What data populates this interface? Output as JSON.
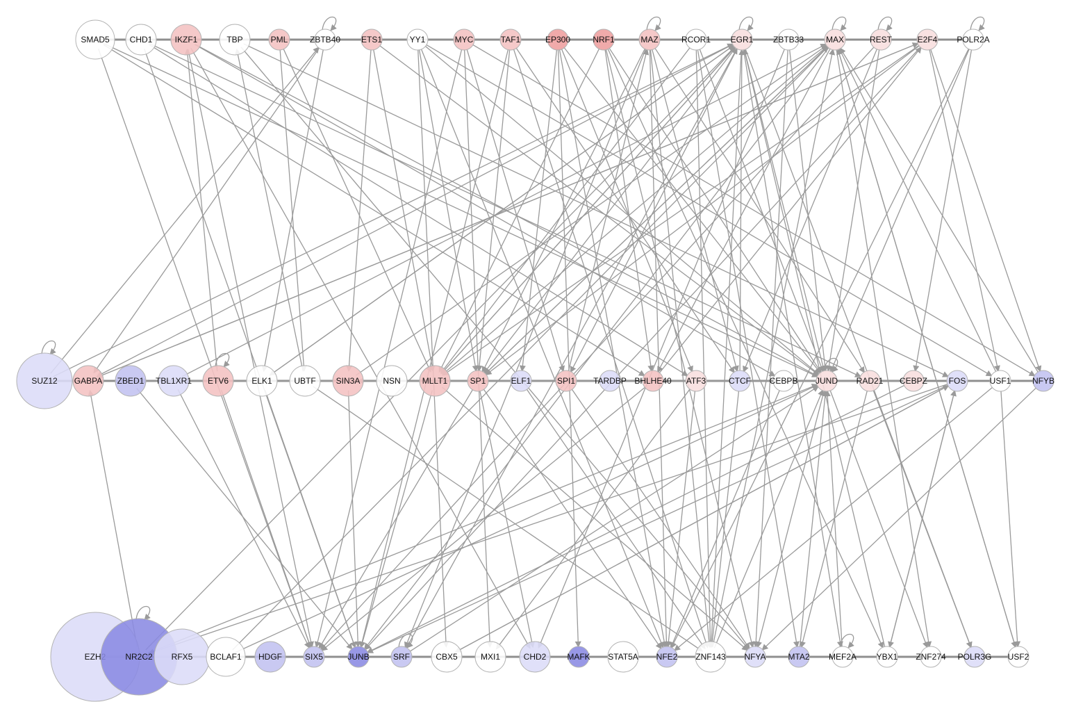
{
  "colors": {
    "edge": "#9a9a9a",
    "node_stroke": "#b3b3b3",
    "neutral": "#ffffff",
    "up_light": "#f8dede",
    "up_mid": "#f4c2c2",
    "up_strong": "#ee9e9e",
    "down_light": "#dcdcf8",
    "down_mid": "#c2c2f0",
    "down_strong": "#8a8ae3"
  },
  "rows": [
    {
      "name": "top",
      "nodes": [
        {
          "id": "SMAD5",
          "label": "SMAD5",
          "size": 3,
          "tone": "neutral",
          "self_loop": false
        },
        {
          "id": "CHD1",
          "label": "CHD1",
          "size": 2,
          "tone": "neutral",
          "self_loop": false
        },
        {
          "id": "IKZF1",
          "label": "IKZF1",
          "size": 2,
          "tone": "up_mid",
          "self_loop": false
        },
        {
          "id": "TBP",
          "label": "TBP",
          "size": 2,
          "tone": "neutral",
          "self_loop": false
        },
        {
          "id": "PML",
          "label": "PML",
          "size": 1,
          "tone": "up_mid",
          "self_loop": false
        },
        {
          "id": "ZBTB40",
          "label": "ZBTB40",
          "size": 1,
          "tone": "neutral",
          "self_loop": true
        },
        {
          "id": "ETS1",
          "label": "ETS1",
          "size": 1,
          "tone": "up_mid",
          "self_loop": false
        },
        {
          "id": "YY1",
          "label": "YY1",
          "size": 1,
          "tone": "neutral",
          "self_loop": false
        },
        {
          "id": "MYC",
          "label": "MYC",
          "size": 1,
          "tone": "up_mid",
          "self_loop": false
        },
        {
          "id": "TAF1",
          "label": "TAF1",
          "size": 1,
          "tone": "up_mid",
          "self_loop": false
        },
        {
          "id": "EP300",
          "label": "EP300",
          "size": 1,
          "tone": "up_strong",
          "self_loop": false
        },
        {
          "id": "NRF1",
          "label": "NRF1",
          "size": 1,
          "tone": "up_strong",
          "self_loop": false
        },
        {
          "id": "MAZ",
          "label": "MAZ",
          "size": 1,
          "tone": "up_mid",
          "self_loop": true
        },
        {
          "id": "RCOR1",
          "label": "RCOR1",
          "size": 1,
          "tone": "neutral",
          "self_loop": false
        },
        {
          "id": "EGR1",
          "label": "EGR1",
          "size": 1,
          "tone": "up_light",
          "self_loop": true
        },
        {
          "id": "ZBTB33",
          "label": "ZBTB33",
          "size": 1,
          "tone": "neutral",
          "self_loop": false
        },
        {
          "id": "MAX",
          "label": "MAX",
          "size": 1,
          "tone": "up_light",
          "self_loop": true
        },
        {
          "id": "REST",
          "label": "REST",
          "size": 1,
          "tone": "up_light",
          "self_loop": true
        },
        {
          "id": "E2F4",
          "label": "E2F4",
          "size": 1,
          "tone": "up_light",
          "self_loop": false
        },
        {
          "id": "POLR2A",
          "label": "POLR2A",
          "size": 1,
          "tone": "neutral",
          "self_loop": true
        }
      ]
    },
    {
      "name": "middle",
      "nodes": [
        {
          "id": "SUZ12",
          "label": "SUZ12",
          "size": 4,
          "tone": "down_light",
          "self_loop": true
        },
        {
          "id": "GABPA",
          "label": "GABPA",
          "size": 2,
          "tone": "up_mid",
          "self_loop": false
        },
        {
          "id": "ZBED1",
          "label": "ZBED1",
          "size": 2,
          "tone": "down_mid",
          "self_loop": false
        },
        {
          "id": "TBL1XR1",
          "label": "TBL1XR1",
          "size": 2,
          "tone": "down_light",
          "self_loop": false
        },
        {
          "id": "ETV6",
          "label": "ETV6",
          "size": 2,
          "tone": "up_mid",
          "self_loop": true
        },
        {
          "id": "ELK1",
          "label": "ELK1",
          "size": 2,
          "tone": "neutral",
          "self_loop": false
        },
        {
          "id": "UBTF",
          "label": "UBTF",
          "size": 2,
          "tone": "neutral",
          "self_loop": false
        },
        {
          "id": "SIN3A",
          "label": "SIN3A",
          "size": 2,
          "tone": "up_mid",
          "self_loop": false
        },
        {
          "id": "NSN",
          "label": "NSN",
          "size": 2,
          "tone": "neutral",
          "self_loop": false
        },
        {
          "id": "MLLT1",
          "label": "MLLT1",
          "size": 2,
          "tone": "up_mid",
          "self_loop": false
        },
        {
          "id": "SP1",
          "label": "SP1",
          "size": 1,
          "tone": "up_mid",
          "self_loop": false
        },
        {
          "id": "ELF1",
          "label": "ELF1",
          "size": 1,
          "tone": "down_light",
          "self_loop": false
        },
        {
          "id": "SPI1",
          "label": "SPI1",
          "size": 1,
          "tone": "up_mid",
          "self_loop": false
        },
        {
          "id": "TARDBP",
          "label": "TARDBP",
          "size": 1,
          "tone": "down_light",
          "self_loop": false
        },
        {
          "id": "BHLHE40",
          "label": "BHLHE40",
          "size": 1,
          "tone": "up_mid",
          "self_loop": false
        },
        {
          "id": "ATF3",
          "label": "ATF3",
          "size": 1,
          "tone": "up_light",
          "self_loop": false
        },
        {
          "id": "CTCF",
          "label": "CTCF",
          "size": 1,
          "tone": "down_light",
          "self_loop": false
        },
        {
          "id": "CEBPB",
          "label": "CEBPB",
          "size": 1,
          "tone": "neutral",
          "self_loop": false
        },
        {
          "id": "JUND",
          "label": "JUND",
          "size": 1,
          "tone": "up_light",
          "self_loop": true
        },
        {
          "id": "RAD21",
          "label": "RAD21",
          "size": 1,
          "tone": "up_light",
          "self_loop": false
        },
        {
          "id": "CEBPZ",
          "label": "CEBPZ",
          "size": 1,
          "tone": "up_light",
          "self_loop": false
        },
        {
          "id": "FOS",
          "label": "FOS",
          "size": 1,
          "tone": "down_light",
          "self_loop": false
        },
        {
          "id": "USF1",
          "label": "USF1",
          "size": 1,
          "tone": "neutral",
          "self_loop": false
        },
        {
          "id": "NFYB",
          "label": "NFYB",
          "size": 1,
          "tone": "down_mid",
          "self_loop": false
        }
      ]
    },
    {
      "name": "bottom",
      "nodes": [
        {
          "id": "EZH2",
          "label": "EZH2",
          "size": 8,
          "tone": "down_light",
          "self_loop": false
        },
        {
          "id": "NR2C2",
          "label": "NR2C2",
          "size": 6,
          "tone": "down_strong",
          "self_loop": true
        },
        {
          "id": "RFX5",
          "label": "RFX5",
          "size": 4,
          "tone": "down_light",
          "self_loop": false
        },
        {
          "id": "BCLAF1",
          "label": "BCLAF1",
          "size": 3,
          "tone": "neutral",
          "self_loop": false
        },
        {
          "id": "HDGF",
          "label": "HDGF",
          "size": 2,
          "tone": "down_mid",
          "self_loop": false
        },
        {
          "id": "SIX5",
          "label": "SIX5",
          "size": 1,
          "tone": "down_mid",
          "self_loop": false
        },
        {
          "id": "JUNB",
          "label": "JUNB",
          "size": 1,
          "tone": "down_strong",
          "self_loop": false
        },
        {
          "id": "SRF",
          "label": "SRF",
          "size": 1,
          "tone": "down_mid",
          "self_loop": true
        },
        {
          "id": "CBX5",
          "label": "CBX5",
          "size": 2,
          "tone": "neutral",
          "self_loop": false
        },
        {
          "id": "MXI1",
          "label": "MXI1",
          "size": 2,
          "tone": "neutral",
          "self_loop": false
        },
        {
          "id": "CHD2",
          "label": "CHD2",
          "size": 2,
          "tone": "down_light",
          "self_loop": false
        },
        {
          "id": "MAFK",
          "label": "MAFK",
          "size": 1,
          "tone": "down_strong",
          "self_loop": false
        },
        {
          "id": "STAT5A",
          "label": "STAT5A",
          "size": 2,
          "tone": "neutral",
          "self_loop": false
        },
        {
          "id": "NFE2",
          "label": "NFE2",
          "size": 1,
          "tone": "down_mid",
          "self_loop": false
        },
        {
          "id": "ZNF143",
          "label": "ZNF143",
          "size": 2,
          "tone": "neutral",
          "self_loop": false
        },
        {
          "id": "NFYA",
          "label": "NFYA",
          "size": 1,
          "tone": "down_light",
          "self_loop": false
        },
        {
          "id": "MTA2",
          "label": "MTA2",
          "size": 1,
          "tone": "down_mid",
          "self_loop": false
        },
        {
          "id": "MEF2A",
          "label": "MEF2A",
          "size": 1,
          "tone": "neutral",
          "self_loop": true
        },
        {
          "id": "YBX1",
          "label": "YBX1",
          "size": 1,
          "tone": "neutral",
          "self_loop": false
        },
        {
          "id": "ZNF274",
          "label": "ZNF274",
          "size": 1,
          "tone": "neutral",
          "self_loop": false
        },
        {
          "id": "POLR3G",
          "label": "POLR3G",
          "size": 1,
          "tone": "down_light",
          "self_loop": false
        },
        {
          "id": "USF2",
          "label": "USF2",
          "size": 1,
          "tone": "neutral",
          "self_loop": false
        }
      ]
    }
  ],
  "edges": [
    [
      "SMAD5",
      "SIX5"
    ],
    [
      "SMAD5",
      "BHLHE40"
    ],
    [
      "SMAD5",
      "JUND"
    ],
    [
      "CHD1",
      "JUNB"
    ],
    [
      "CHD1",
      "ATF3"
    ],
    [
      "CHD1",
      "RAD21"
    ],
    [
      "IKZF1",
      "SIX5"
    ],
    [
      "IKZF1",
      "CEBPB"
    ],
    [
      "IKZF1",
      "JUND"
    ],
    [
      "IKZF1",
      "CHD2"
    ],
    [
      "TBP",
      "NFYA"
    ],
    [
      "TBP",
      "FOS"
    ],
    [
      "PML",
      "MLLT1"
    ],
    [
      "PML",
      "UBTF"
    ],
    [
      "ZBTB40",
      "ELK1"
    ],
    [
      "ZBTB40",
      "GABPA"
    ],
    [
      "ETS1",
      "SIN3A"
    ],
    [
      "ETS1",
      "MLLT1"
    ],
    [
      "ETS1",
      "JUND"
    ],
    [
      "YY1",
      "SP1"
    ],
    [
      "YY1",
      "JUND"
    ],
    [
      "YY1",
      "NFE2"
    ],
    [
      "YY1",
      "CBX5"
    ],
    [
      "YY1",
      "USF1"
    ],
    [
      "MYC",
      "SPI1"
    ],
    [
      "MYC",
      "MXI1"
    ],
    [
      "MYC",
      "NFYB"
    ],
    [
      "MYC",
      "SIX5"
    ],
    [
      "TAF1",
      "JUNB"
    ],
    [
      "TAF1",
      "SP1"
    ],
    [
      "TAF1",
      "CTCF"
    ],
    [
      "TAF1",
      "ZNF143"
    ],
    [
      "EP300",
      "ELF1"
    ],
    [
      "EP300",
      "ATF3"
    ],
    [
      "EP300",
      "JUND"
    ],
    [
      "EP300",
      "MAFK"
    ],
    [
      "EP300",
      "NFE2"
    ],
    [
      "NRF1",
      "BHLHE40"
    ],
    [
      "NRF1",
      "JUND"
    ],
    [
      "NRF1",
      "MLLT1"
    ],
    [
      "NRF1",
      "NFYA"
    ],
    [
      "NRF1",
      "YBX1"
    ],
    [
      "MAZ",
      "SP1"
    ],
    [
      "MAZ",
      "ZNF143"
    ],
    [
      "MAZ",
      "SRF"
    ],
    [
      "MAZ",
      "CTCF"
    ],
    [
      "MAZ",
      "NFE2"
    ],
    [
      "MAZ",
      "RAD21"
    ],
    [
      "RCOR1",
      "MLLT1"
    ],
    [
      "RCOR1",
      "JUND"
    ],
    [
      "RCOR1",
      "ZNF143"
    ],
    [
      "RCOR1",
      "MTA2"
    ],
    [
      "EGR1",
      "GABPA"
    ],
    [
      "EGR1",
      "ELK1"
    ],
    [
      "EGR1",
      "SP1"
    ],
    [
      "EGR1",
      "MLLT1"
    ],
    [
      "EGR1",
      "SPI1"
    ],
    [
      "EGR1",
      "JUND"
    ],
    [
      "EGR1",
      "ZNF143"
    ],
    [
      "EGR1",
      "POLR3G"
    ],
    [
      "EGR1",
      "MEF2A"
    ],
    [
      "ZBTB33",
      "JUND"
    ],
    [
      "ZBTB33",
      "NFYA"
    ],
    [
      "ZBTB33",
      "CHD2"
    ],
    [
      "MAX",
      "MLLT1"
    ],
    [
      "MAX",
      "JUNB"
    ],
    [
      "MAX",
      "SP1"
    ],
    [
      "MAX",
      "ZNF274"
    ],
    [
      "MAX",
      "BHLHE40"
    ],
    [
      "MAX",
      "USF2"
    ],
    [
      "REST",
      "JUND"
    ],
    [
      "REST",
      "CTCF"
    ],
    [
      "REST",
      "SIX5"
    ],
    [
      "E2F4",
      "GABPA"
    ],
    [
      "E2F4",
      "MLLT1"
    ],
    [
      "E2F4",
      "SP1"
    ],
    [
      "E2F4",
      "NFYB"
    ],
    [
      "E2F4",
      "JUNB"
    ],
    [
      "E2F4",
      "USF1"
    ],
    [
      "POLR2A",
      "JUND"
    ],
    [
      "POLR2A",
      "CEBPZ"
    ],
    [
      "POLR2A",
      "NFE2"
    ],
    [
      "SUZ12",
      "EGR1"
    ],
    [
      "SUZ12",
      "ZBTB40"
    ],
    [
      "GABPA",
      "E2F4"
    ],
    [
      "ZBED1",
      "JUNB"
    ],
    [
      "TBL1XR1",
      "SIX5"
    ],
    [
      "TBL1XR1",
      "MAX"
    ],
    [
      "ETV6",
      "IKZF1"
    ],
    [
      "ETV6",
      "SIX5"
    ],
    [
      "ELK1",
      "EGR1"
    ],
    [
      "ELK1",
      "JUNB"
    ],
    [
      "UBTF",
      "TBP"
    ],
    [
      "UBTF",
      "ZNF143"
    ],
    [
      "SIN3A",
      "JUNB"
    ],
    [
      "SIN3A",
      "MAX"
    ],
    [
      "MLLT1",
      "NFYA"
    ],
    [
      "MLLT1",
      "JUNB"
    ],
    [
      "MLLT1",
      "EGR1"
    ],
    [
      "SP1",
      "NFE2"
    ],
    [
      "SP1",
      "MAX"
    ],
    [
      "SP1",
      "CHD2"
    ],
    [
      "SP1",
      "SIX5"
    ],
    [
      "ELF1",
      "ZNF143"
    ],
    [
      "SPI1",
      "NFYA"
    ],
    [
      "SPI1",
      "MAZ"
    ],
    [
      "BHLHE40",
      "SIX5"
    ],
    [
      "BHLHE40",
      "E2F4"
    ],
    [
      "ATF3",
      "NFE2"
    ],
    [
      "ATF3",
      "MXI1"
    ],
    [
      "CTCF",
      "EGR1"
    ],
    [
      "CTCF",
      "ZNF143"
    ],
    [
      "CEBPB",
      "NFE2"
    ],
    [
      "CEBPB",
      "ZBED1"
    ],
    [
      "JUND",
      "ZNF274"
    ],
    [
      "JUND",
      "NFYA"
    ],
    [
      "JUND",
      "SIN3A"
    ],
    [
      "RAD21",
      "MTA2"
    ],
    [
      "RAD21",
      "POLR3G"
    ],
    [
      "CEBPZ",
      "JUNB"
    ],
    [
      "CEBPZ",
      "TBL1XR1"
    ],
    [
      "FOS",
      "JUNB"
    ],
    [
      "FOS",
      "NR2C2"
    ],
    [
      "FOS",
      "CBX5"
    ],
    [
      "FOS",
      "YBX1"
    ],
    [
      "USF1",
      "MAX"
    ],
    [
      "USF1",
      "NFE2"
    ],
    [
      "USF1",
      "USF2"
    ],
    [
      "NFYB",
      "MAX"
    ],
    [
      "NFYB",
      "NFYA"
    ],
    [
      "NR2C2",
      "GABPA"
    ],
    [
      "NR2C2",
      "EGR1"
    ],
    [
      "NR2C2",
      "JUND"
    ],
    [
      "BCLAF1",
      "MAX"
    ],
    [
      "BCLAF1",
      "JUND"
    ],
    [
      "SRF",
      "EGR1"
    ],
    [
      "SRF",
      "JUND"
    ],
    [
      "CBX5",
      "FOS"
    ],
    [
      "ZNF143",
      "JUND"
    ],
    [
      "ZNF143",
      "MAX"
    ],
    [
      "MTA2",
      "JUND"
    ],
    [
      "MEF2A",
      "JUND"
    ],
    [
      "YBX1",
      "FOS"
    ],
    [
      "YBX1",
      "EGR1"
    ],
    [
      "USF2",
      "MAX"
    ]
  ]
}
